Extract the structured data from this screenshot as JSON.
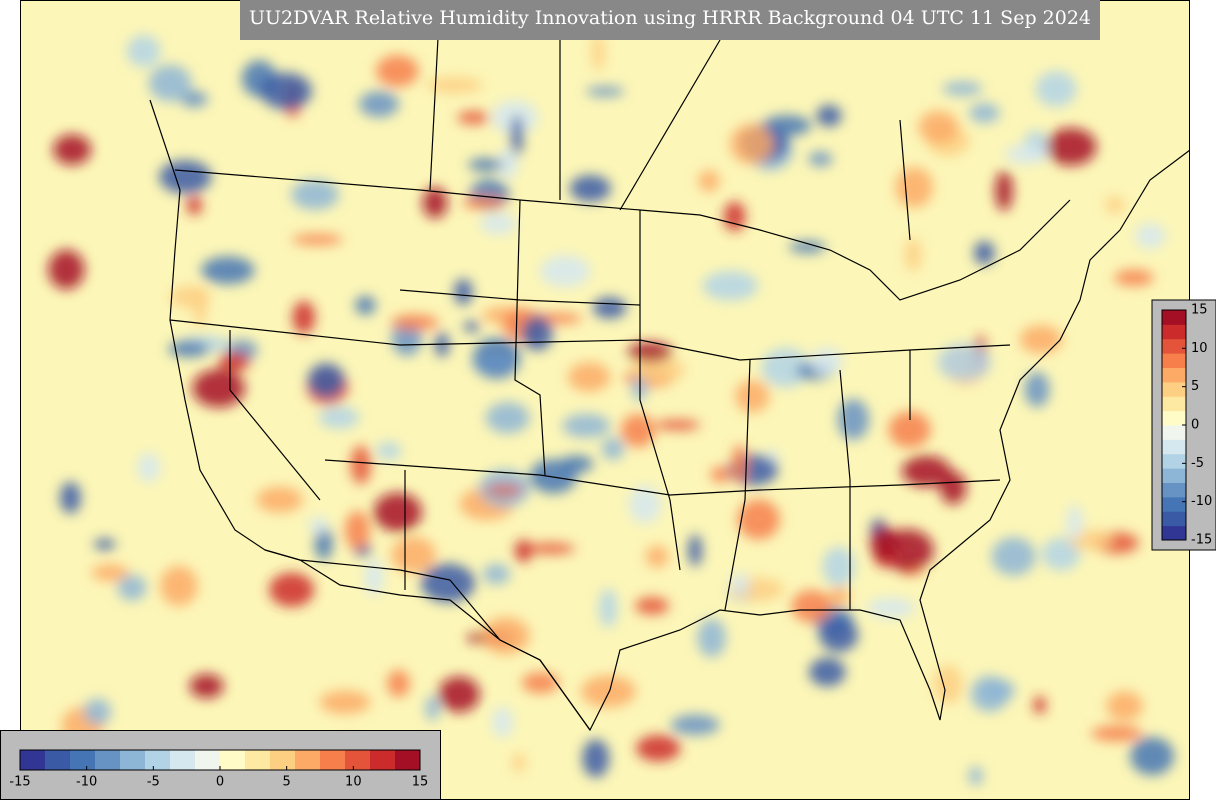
{
  "title": "UU2DVAR Relative Humidity Innovation using HRRR Background 04 UTC 11 Sep 2024",
  "colors": [
    "#313695",
    "#3a5aa6",
    "#4575b4",
    "#6692c4",
    "#8db5d6",
    "#b2d3e6",
    "#d5e8f0",
    "#f0f6ee",
    "#fffcc8",
    "#fee9a3",
    "#fdcf82",
    "#fcaa66",
    "#f67f4c",
    "#e4543a",
    "#cb2b2b",
    "#a50f26"
  ],
  "colorbar_right": {
    "ticks": [
      15,
      10,
      5,
      0,
      -5,
      -10,
      -15
    ]
  },
  "colorbar_bottom": {
    "ticks": [
      -15,
      -10,
      -5,
      0,
      5,
      10,
      15
    ]
  }
}
